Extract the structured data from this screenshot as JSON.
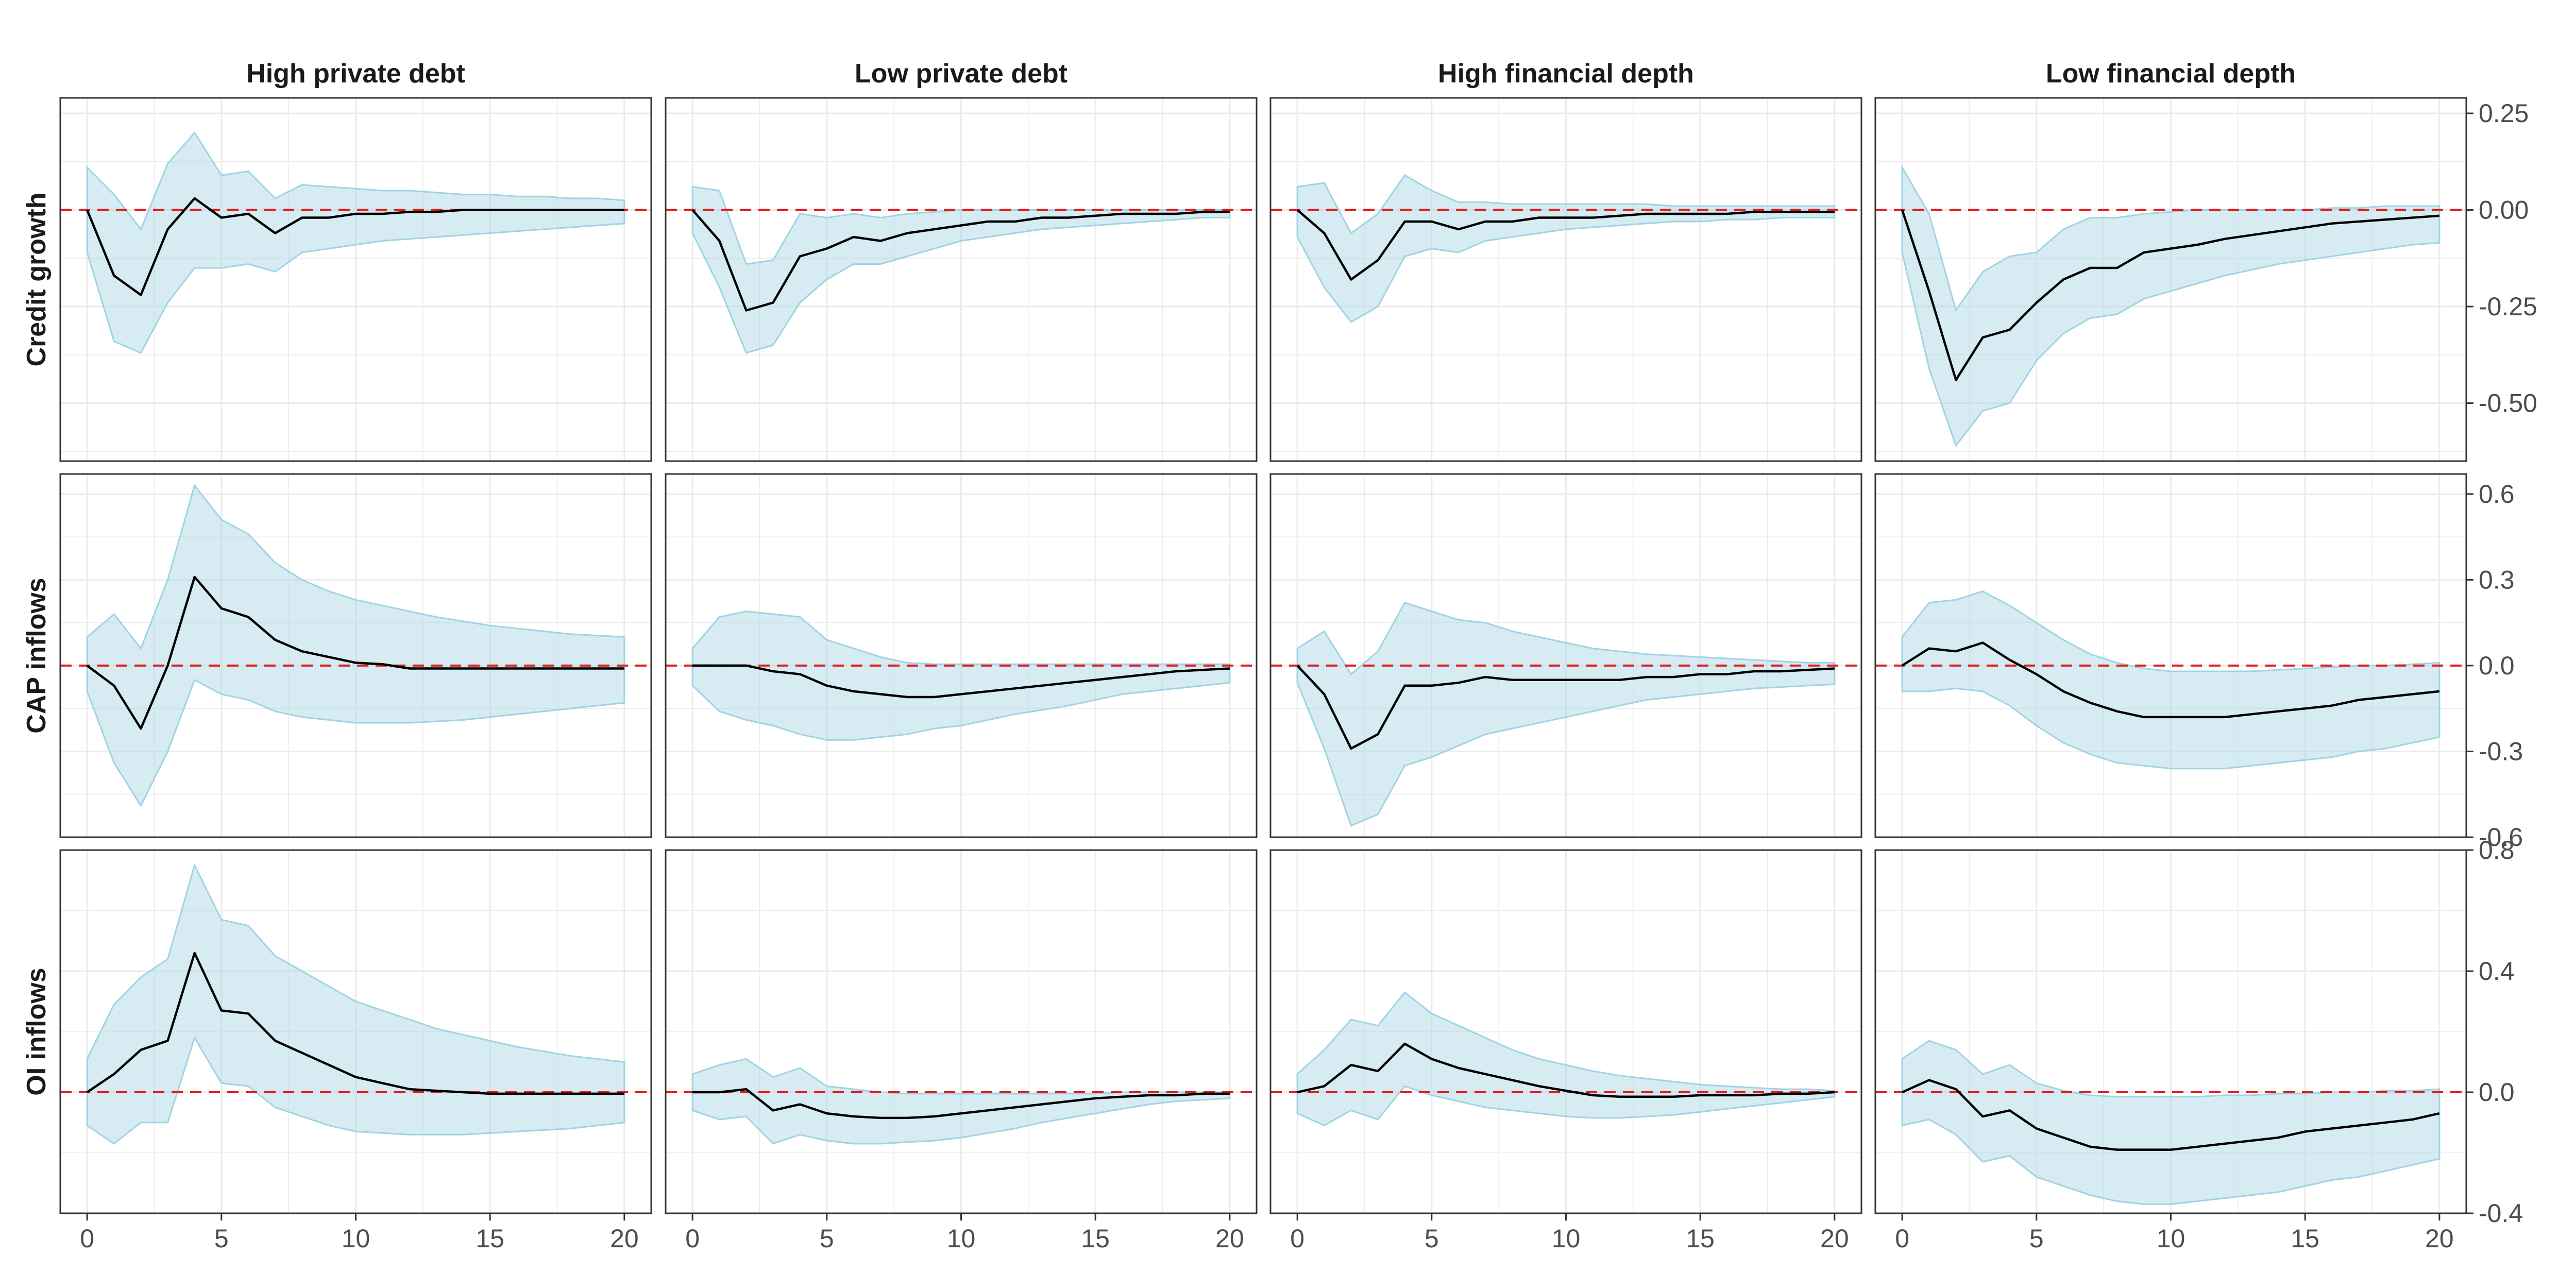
{
  "colors": {
    "band_fill": "#add8e6",
    "band_stroke": "#9fd4e2",
    "line": "#000000",
    "zero_line": "#e41a1c",
    "panel_border": "#333333",
    "grid": "#ebebeb"
  },
  "chart_data": {
    "type": "line",
    "layout": "facet-grid",
    "columns": [
      "High private debt",
      "Low private debt",
      "High financial depth",
      "Low financial depth"
    ],
    "rows": [
      "Credit growth",
      "CAP inflows",
      "OI inflows"
    ],
    "x": [
      0,
      1,
      2,
      3,
      4,
      5,
      6,
      7,
      8,
      9,
      10,
      11,
      12,
      13,
      14,
      15,
      16,
      17,
      18,
      19,
      20
    ],
    "x_ticks": [
      0,
      5,
      10,
      15,
      20
    ],
    "xlim": [
      -1,
      21
    ],
    "y_axis_position": "right",
    "y_axes": [
      {
        "row": "Credit growth",
        "ylim": [
          -0.65,
          0.29
        ],
        "ticks": [
          0.25,
          0.0,
          -0.25,
          -0.5
        ],
        "tick_labels": [
          "0.25",
          "0.00",
          "-0.25",
          "-0.50"
        ]
      },
      {
        "row": "CAP inflows",
        "ylim": [
          -0.6,
          0.67
        ],
        "ticks": [
          0.6,
          0.3,
          0.0,
          -0.3,
          -0.6
        ],
        "tick_labels": [
          "0.6",
          "0.3",
          "0.0",
          "-0.3",
          "-0.6"
        ]
      },
      {
        "row": "OI inflows",
        "ylim": [
          -0.4,
          0.8
        ],
        "ticks": [
          0.8,
          0.4,
          0.0,
          -0.4
        ],
        "tick_labels": [
          "0.8",
          "0.4",
          "0.0",
          "-0.4"
        ]
      }
    ],
    "grid": true,
    "reference_line": {
      "y": 0,
      "style": "dashed"
    },
    "panels": [
      [
        {
          "y": [
            0,
            -0.17,
            -0.22,
            -0.05,
            0.03,
            -0.02,
            -0.01,
            -0.06,
            -0.02,
            -0.02,
            -0.01,
            -0.01,
            -0.005,
            -0.005,
            0,
            0,
            0,
            0,
            0,
            0,
            0
          ],
          "lower": [
            -0.11,
            -0.34,
            -0.37,
            -0.24,
            -0.15,
            -0.15,
            -0.14,
            -0.16,
            -0.11,
            -0.1,
            -0.09,
            -0.08,
            -0.075,
            -0.07,
            -0.065,
            -0.06,
            -0.055,
            -0.05,
            -0.045,
            -0.04,
            -0.035
          ],
          "upper": [
            0.11,
            0.04,
            -0.05,
            0.12,
            0.2,
            0.09,
            0.1,
            0.03,
            0.065,
            0.06,
            0.055,
            0.05,
            0.05,
            0.045,
            0.04,
            0.04,
            0.035,
            0.035,
            0.03,
            0.03,
            0.025
          ]
        },
        {
          "y": [
            0,
            -0.08,
            -0.26,
            -0.24,
            -0.12,
            -0.1,
            -0.07,
            -0.08,
            -0.06,
            -0.05,
            -0.04,
            -0.03,
            -0.03,
            -0.02,
            -0.02,
            -0.015,
            -0.01,
            -0.01,
            -0.01,
            -0.005,
            -0.005
          ],
          "lower": [
            -0.06,
            -0.2,
            -0.37,
            -0.35,
            -0.24,
            -0.18,
            -0.14,
            -0.14,
            -0.12,
            -0.1,
            -0.08,
            -0.07,
            -0.06,
            -0.05,
            -0.045,
            -0.04,
            -0.035,
            -0.03,
            -0.025,
            -0.02,
            -0.02
          ],
          "upper": [
            0.06,
            0.05,
            -0.14,
            -0.13,
            -0.01,
            -0.02,
            -0.01,
            -0.02,
            -0.01,
            -0.005,
            0,
            0,
            0,
            0,
            0,
            0,
            0,
            0,
            0,
            0,
            0
          ]
        },
        {
          "y": [
            0,
            -0.06,
            -0.18,
            -0.13,
            -0.03,
            -0.03,
            -0.05,
            -0.03,
            -0.03,
            -0.02,
            -0.02,
            -0.02,
            -0.015,
            -0.01,
            -0.01,
            -0.01,
            -0.01,
            -0.005,
            -0.005,
            -0.005,
            -0.005
          ],
          "lower": [
            -0.07,
            -0.2,
            -0.29,
            -0.25,
            -0.12,
            -0.1,
            -0.11,
            -0.08,
            -0.07,
            -0.06,
            -0.05,
            -0.045,
            -0.04,
            -0.035,
            -0.03,
            -0.03,
            -0.025,
            -0.025,
            -0.02,
            -0.02,
            -0.02
          ],
          "upper": [
            0.06,
            0.07,
            -0.06,
            -0.01,
            0.09,
            0.05,
            0.02,
            0.02,
            0.015,
            0.015,
            0.015,
            0.015,
            0.015,
            0.015,
            0.01,
            0.01,
            0.01,
            0.01,
            0.01,
            0.01,
            0.01
          ]
        },
        {
          "y": [
            0,
            -0.21,
            -0.44,
            -0.33,
            -0.31,
            -0.24,
            -0.18,
            -0.15,
            -0.15,
            -0.11,
            -0.1,
            -0.09,
            -0.075,
            -0.065,
            -0.055,
            -0.045,
            -0.035,
            -0.03,
            -0.025,
            -0.02,
            -0.015
          ],
          "lower": [
            -0.11,
            -0.41,
            -0.61,
            -0.52,
            -0.5,
            -0.39,
            -0.32,
            -0.28,
            -0.27,
            -0.23,
            -0.21,
            -0.19,
            -0.17,
            -0.155,
            -0.14,
            -0.13,
            -0.12,
            -0.11,
            -0.1,
            -0.09,
            -0.085
          ],
          "upper": [
            0.11,
            -0.01,
            -0.26,
            -0.16,
            -0.12,
            -0.11,
            -0.05,
            -0.02,
            -0.02,
            -0.01,
            -0.005,
            0,
            0,
            0,
            0,
            0,
            0.005,
            0.005,
            0.01,
            0.01,
            0.01
          ]
        }
      ],
      [
        {
          "y": [
            0,
            -0.07,
            -0.22,
            0.0,
            0.31,
            0.2,
            0.17,
            0.09,
            0.05,
            0.03,
            0.01,
            0.005,
            -0.01,
            -0.01,
            -0.01,
            -0.01,
            -0.01,
            -0.01,
            -0.01,
            -0.01,
            -0.01
          ],
          "lower": [
            -0.09,
            -0.34,
            -0.49,
            -0.3,
            -0.05,
            -0.1,
            -0.12,
            -0.16,
            -0.18,
            -0.19,
            -0.2,
            -0.2,
            -0.2,
            -0.195,
            -0.19,
            -0.18,
            -0.17,
            -0.16,
            -0.15,
            -0.14,
            -0.13
          ],
          "upper": [
            0.1,
            0.18,
            0.06,
            0.3,
            0.63,
            0.51,
            0.46,
            0.36,
            0.3,
            0.26,
            0.23,
            0.21,
            0.19,
            0.17,
            0.155,
            0.14,
            0.13,
            0.12,
            0.11,
            0.105,
            0.1
          ]
        },
        {
          "y": [
            0,
            0,
            0,
            -0.02,
            -0.03,
            -0.07,
            -0.09,
            -0.1,
            -0.11,
            -0.11,
            -0.1,
            -0.09,
            -0.08,
            -0.07,
            -0.06,
            -0.05,
            -0.04,
            -0.03,
            -0.02,
            -0.015,
            -0.01
          ],
          "lower": [
            -0.07,
            -0.16,
            -0.19,
            -0.21,
            -0.24,
            -0.26,
            -0.26,
            -0.25,
            -0.24,
            -0.22,
            -0.21,
            -0.19,
            -0.17,
            -0.155,
            -0.14,
            -0.12,
            -0.1,
            -0.09,
            -0.08,
            -0.07,
            -0.06
          ],
          "upper": [
            0.06,
            0.17,
            0.19,
            0.18,
            0.17,
            0.09,
            0.06,
            0.03,
            0.01,
            0.005,
            0.005,
            0.005,
            0.005,
            0.005,
            0.005,
            0.005,
            0.005,
            0.005,
            0.005,
            0.005,
            0.005
          ]
        },
        {
          "y": [
            0,
            -0.1,
            -0.29,
            -0.24,
            -0.07,
            -0.07,
            -0.06,
            -0.04,
            -0.05,
            -0.05,
            -0.05,
            -0.05,
            -0.05,
            -0.04,
            -0.04,
            -0.03,
            -0.03,
            -0.02,
            -0.02,
            -0.015,
            -0.01
          ],
          "lower": [
            -0.06,
            -0.29,
            -0.56,
            -0.52,
            -0.35,
            -0.32,
            -0.28,
            -0.24,
            -0.22,
            -0.2,
            -0.18,
            -0.16,
            -0.14,
            -0.12,
            -0.11,
            -0.1,
            -0.09,
            -0.08,
            -0.075,
            -0.07,
            -0.065
          ],
          "upper": [
            0.06,
            0.12,
            -0.03,
            0.05,
            0.22,
            0.19,
            0.16,
            0.15,
            0.12,
            0.1,
            0.08,
            0.06,
            0.05,
            0.04,
            0.035,
            0.03,
            0.025,
            0.02,
            0.015,
            0.01,
            0.01
          ]
        },
        {
          "y": [
            0,
            0.06,
            0.05,
            0.08,
            0.02,
            -0.03,
            -0.09,
            -0.13,
            -0.16,
            -0.18,
            -0.18,
            -0.18,
            -0.18,
            -0.17,
            -0.16,
            -0.15,
            -0.14,
            -0.12,
            -0.11,
            -0.1,
            -0.09
          ],
          "lower": [
            -0.09,
            -0.09,
            -0.08,
            -0.09,
            -0.14,
            -0.21,
            -0.27,
            -0.31,
            -0.34,
            -0.35,
            -0.36,
            -0.36,
            -0.36,
            -0.35,
            -0.34,
            -0.33,
            -0.32,
            -0.3,
            -0.29,
            -0.27,
            -0.25
          ],
          "upper": [
            0.1,
            0.22,
            0.23,
            0.26,
            0.21,
            0.15,
            0.09,
            0.04,
            0.01,
            -0.01,
            -0.02,
            -0.02,
            -0.02,
            -0.02,
            -0.015,
            -0.01,
            -0.005,
            0,
            0,
            0.005,
            0.01
          ]
        }
      ],
      [
        {
          "y": [
            0,
            0.06,
            0.14,
            0.17,
            0.46,
            0.27,
            0.26,
            0.17,
            0.13,
            0.09,
            0.05,
            0.03,
            0.01,
            0.005,
            0,
            -0.005,
            -0.005,
            -0.005,
            -0.005,
            -0.005,
            -0.005
          ],
          "lower": [
            -0.11,
            -0.17,
            -0.1,
            -0.1,
            0.18,
            0.03,
            0.02,
            -0.05,
            -0.08,
            -0.11,
            -0.13,
            -0.135,
            -0.14,
            -0.14,
            -0.14,
            -0.135,
            -0.13,
            -0.125,
            -0.12,
            -0.11,
            -0.1
          ],
          "upper": [
            0.11,
            0.29,
            0.38,
            0.44,
            0.75,
            0.57,
            0.55,
            0.45,
            0.4,
            0.35,
            0.3,
            0.27,
            0.24,
            0.21,
            0.19,
            0.17,
            0.15,
            0.135,
            0.12,
            0.11,
            0.1
          ]
        },
        {
          "y": [
            0,
            0,
            0.01,
            -0.06,
            -0.04,
            -0.07,
            -0.08,
            -0.085,
            -0.085,
            -0.08,
            -0.07,
            -0.06,
            -0.05,
            -0.04,
            -0.03,
            -0.02,
            -0.015,
            -0.01,
            -0.01,
            -0.005,
            -0.005
          ],
          "lower": [
            -0.06,
            -0.09,
            -0.08,
            -0.17,
            -0.14,
            -0.16,
            -0.17,
            -0.17,
            -0.165,
            -0.16,
            -0.15,
            -0.135,
            -0.12,
            -0.1,
            -0.085,
            -0.07,
            -0.055,
            -0.04,
            -0.03,
            -0.025,
            -0.02
          ],
          "upper": [
            0.06,
            0.09,
            0.11,
            0.05,
            0.08,
            0.02,
            0.01,
            0.0,
            -0.005,
            -0.005,
            -0.005,
            -0.005,
            -0.005,
            -0.005,
            -0.005,
            -0.005,
            0,
            0,
            0,
            0,
            0
          ]
        },
        {
          "y": [
            0,
            0.02,
            0.09,
            0.07,
            0.16,
            0.11,
            0.08,
            0.06,
            0.04,
            0.02,
            0.005,
            -0.01,
            -0.015,
            -0.015,
            -0.015,
            -0.01,
            -0.01,
            -0.01,
            -0.005,
            -0.005,
            0
          ],
          "lower": [
            -0.07,
            -0.11,
            -0.06,
            -0.09,
            0.02,
            -0.01,
            -0.03,
            -0.05,
            -0.06,
            -0.07,
            -0.08,
            -0.085,
            -0.085,
            -0.08,
            -0.075,
            -0.065,
            -0.055,
            -0.045,
            -0.035,
            -0.025,
            -0.015
          ],
          "upper": [
            0.06,
            0.14,
            0.24,
            0.22,
            0.33,
            0.26,
            0.22,
            0.18,
            0.14,
            0.11,
            0.09,
            0.07,
            0.055,
            0.045,
            0.035,
            0.025,
            0.02,
            0.015,
            0.01,
            0.01,
            0.005
          ]
        },
        {
          "y": [
            0,
            0.04,
            0.01,
            -0.08,
            -0.06,
            -0.12,
            -0.15,
            -0.18,
            -0.19,
            -0.19,
            -0.19,
            -0.18,
            -0.17,
            -0.16,
            -0.15,
            -0.13,
            -0.12,
            -0.11,
            -0.1,
            -0.09,
            -0.07
          ],
          "lower": [
            -0.11,
            -0.09,
            -0.14,
            -0.23,
            -0.21,
            -0.28,
            -0.31,
            -0.34,
            -0.36,
            -0.37,
            -0.37,
            -0.36,
            -0.35,
            -0.34,
            -0.33,
            -0.31,
            -0.29,
            -0.28,
            -0.26,
            -0.24,
            -0.22
          ],
          "upper": [
            0.11,
            0.17,
            0.14,
            0.06,
            0.09,
            0.03,
            0.005,
            -0.01,
            -0.015,
            -0.015,
            -0.015,
            -0.015,
            -0.01,
            -0.01,
            -0.005,
            -0.005,
            0,
            0,
            0.005,
            0.005,
            0.01
          ]
        }
      ]
    ]
  }
}
